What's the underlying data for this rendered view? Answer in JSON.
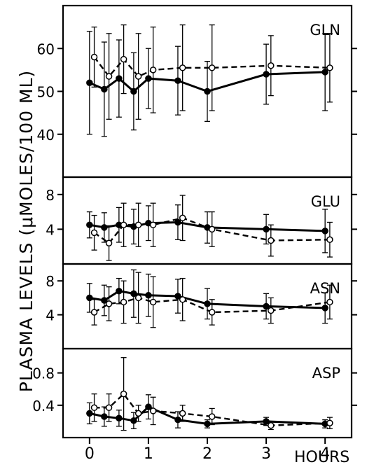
{
  "chart_data": {
    "ylabel": "PLASMA LEVELS (μMOLES/100 ML)",
    "xlabel": "HOURS",
    "x_ticks": [
      0,
      1,
      2,
      3,
      4
    ],
    "xlim": [
      -0.45,
      4.45
    ],
    "panels": [
      {
        "type": "line",
        "title": "GLN",
        "ylim": [
          30,
          70
        ],
        "y_ticks": [
          40,
          50,
          60
        ],
        "series": [
          {
            "style": "solid-filled",
            "x": [
              0,
              0.25,
              0.5,
              0.75,
              1,
              1.5,
              2,
              3,
              4
            ],
            "y": [
              52,
              50.5,
              53,
              50,
              53,
              52.5,
              50,
              54,
              54.5
            ],
            "err": [
              12,
              11,
              9,
              9,
              7,
              8,
              7,
              7,
              9
            ]
          },
          {
            "style": "dashed-open",
            "x": [
              0.08,
              0.33,
              0.58,
              0.83,
              1.08,
              1.58,
              2.08,
              3.08,
              4.08
            ],
            "y": [
              58,
              53.5,
              57.5,
              53.5,
              55,
              55.5,
              55.5,
              56,
              55.5
            ],
            "err": [
              7,
              10,
              8,
              10,
              10,
              10,
              10,
              7,
              8
            ]
          }
        ]
      },
      {
        "type": "line",
        "title": "GLU",
        "ylim": [
          0,
          10
        ],
        "y_ticks": [
          4,
          8
        ],
        "series": [
          {
            "style": "solid-filled",
            "x": [
              0,
              0.25,
              0.5,
              0.75,
              1,
              1.5,
              2,
              3,
              4
            ],
            "y": [
              4.5,
              4.2,
              4.5,
              4.3,
              4.7,
              4.8,
              4.2,
              4,
              3.8
            ],
            "err": [
              1.5,
              1.7,
              2,
              2,
              2,
              2,
              1.8,
              1.7,
              2.5
            ]
          },
          {
            "style": "dashed-open",
            "x": [
              0.08,
              0.33,
              0.58,
              0.83,
              1.08,
              1.58,
              2.08,
              3.08,
              4.08
            ],
            "y": [
              3.6,
              2.4,
              4.5,
              4.5,
              4.5,
              5.3,
              4,
              2.7,
              2.8
            ],
            "err": [
              2,
              2,
              2.5,
              2.5,
              2.5,
              2.6,
              2,
              1.8,
              2
            ]
          }
        ]
      },
      {
        "type": "line",
        "title": "ASN",
        "ylim": [
          0,
          10
        ],
        "y_ticks": [
          4,
          8
        ],
        "series": [
          {
            "style": "solid-filled",
            "x": [
              0,
              0.25,
              0.5,
              0.75,
              1,
              1.5,
              2,
              3,
              4
            ],
            "y": [
              6,
              5.7,
              6.8,
              6.5,
              6.3,
              6.2,
              5.3,
              5,
              4.8
            ],
            "err": [
              1.7,
              1.8,
              1.5,
              2.8,
              2.5,
              2,
              1.8,
              1.5,
              1.8
            ]
          },
          {
            "style": "dashed-open",
            "x": [
              0.08,
              0.33,
              0.58,
              0.83,
              1.08,
              1.58,
              2.08,
              3.08,
              4.08
            ],
            "y": [
              4.3,
              5.3,
              5.5,
              6,
              5.5,
              5.8,
              4.3,
              4.5,
              5.5
            ],
            "err": [
              1.5,
              2,
              2.5,
              3,
              3,
              2.5,
              1.5,
              1.5,
              2
            ]
          }
        ]
      },
      {
        "type": "line",
        "title": "ASP",
        "ylim": [
          0,
          1.1
        ],
        "y_ticks": [
          0.4,
          0.8
        ],
        "y_tick_labels": [
          "0.4",
          "0.8"
        ],
        "series": [
          {
            "style": "solid-filled",
            "x": [
              0,
              0.25,
              0.5,
              0.75,
              1,
              1.5,
              2,
              3,
              4
            ],
            "y": [
              0.3,
              0.26,
              0.24,
              0.21,
              0.38,
              0.22,
              0.17,
              0.2,
              0.17
            ],
            "err": [
              0.13,
              0.12,
              0.1,
              0.1,
              0.15,
              0.1,
              0.05,
              0.05,
              0.05
            ]
          },
          {
            "style": "dashed-open",
            "x": [
              0.08,
              0.33,
              0.58,
              0.83,
              1.08,
              1.58,
              2.08,
              3.08,
              4.08
            ],
            "y": [
              0.37,
              0.37,
              0.54,
              0.3,
              0.33,
              0.3,
              0.26,
              0.15,
              0.18
            ],
            "err": [
              0.17,
              0.17,
              0.45,
              0.1,
              0.17,
              0.1,
              0.1,
              0.05,
              0.07
            ]
          }
        ]
      }
    ]
  }
}
